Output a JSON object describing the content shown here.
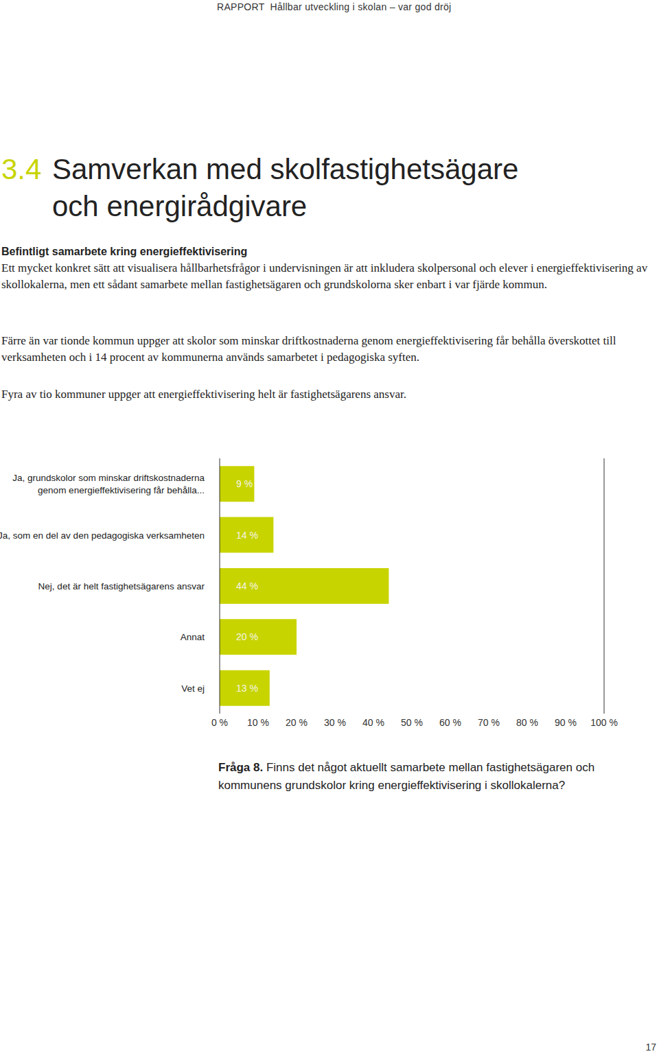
{
  "header": {
    "label": "RAPPORT",
    "title": "Hållbar utveckling i skolan – var god dröj"
  },
  "section": {
    "number": "3.4",
    "title_lines": [
      "Samverkan med skolfastighetsägare",
      "och energirådgivare"
    ]
  },
  "subheading": "Befintligt samarbete kring energieffektivisering",
  "paragraphs": [
    "Ett mycket konkret sätt att visualisera hållbarhetsfrågor i undervisningen är att inkludera skolpersonal och elever i energieffektivisering av skollokalerna, men ett sådant samarbete mellan fastighetsägaren och grundskolorna sker enbart i var fjärde kommun.",
    "Färre än var tionde kommun uppger att skolor som minskar driftkostnaderna genom energieffektivisering får behålla överskottet till verksamheten och i 14 procent av kommunerna används samarbetet i pedagogiska syften.",
    "Fyra av tio kommuner uppger att energieffektivisering helt är fastighetsägarens ansvar."
  ],
  "chart_data": {
    "type": "bar",
    "orientation": "horizontal",
    "categories": [
      "Ja, grundskolor som minskar driftskostnaderna\ngenom energieffektivisering får behålla...",
      "Ja, som en del av den pedagogiska verksamheten",
      "Nej, det är helt fastighetsägarens ansvar",
      "Annat",
      "Vet ej"
    ],
    "values": [
      9,
      14,
      44,
      20,
      13
    ],
    "value_labels": [
      "9 %",
      "14 %",
      "44 %",
      "20 %",
      "13 %"
    ],
    "data_labels": true,
    "color": "#c8d400",
    "xlim": [
      0,
      100
    ],
    "xticks": [
      {
        "value": 0,
        "label": "0 %"
      },
      {
        "value": 10,
        "label": "10 %"
      },
      {
        "value": 20,
        "label": "20 %"
      },
      {
        "value": 30,
        "label": "30 %"
      },
      {
        "value": 40,
        "label": "40 %"
      },
      {
        "value": 50,
        "label": "50 %"
      },
      {
        "value": 60,
        "label": "60 %"
      },
      {
        "value": 70,
        "label": "70 %"
      },
      {
        "value": 80,
        "label": "80 %"
      },
      {
        "value": 90,
        "label": "90 %"
      },
      {
        "value": 100,
        "label": "100 %"
      }
    ],
    "grid": false
  },
  "caption": {
    "label": "Fråga 8.",
    "text": "Finns det något aktuellt samarbete mellan fastighetsägaren och kommunens grundskolor kring energieffektivisering i skollokalerna?"
  },
  "page_number": "17"
}
